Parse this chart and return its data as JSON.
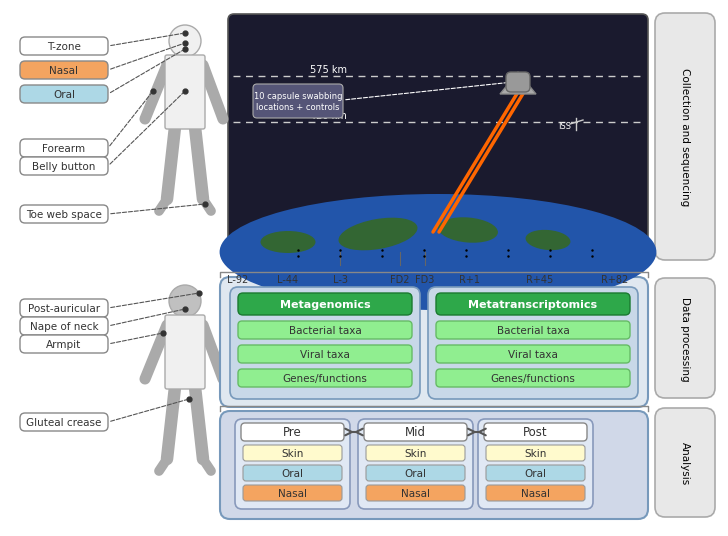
{
  "bg_color": "#ffffff",
  "space_bg": "#1a1a2e",
  "earth_blue": "#2255aa",
  "earth_green": "#336633",
  "dashed_line_color": "#aaaaaa",
  "orange_beam": "#ff6600",
  "labels_left_top": [
    "T-zone",
    "Nasal",
    "Oral",
    "Forearm",
    "Belly button",
    "Toe web space"
  ],
  "labels_left_top_colors": [
    "#ffffff",
    "#f4a460",
    "#add8e6",
    "#ffffff",
    "#ffffff",
    "#ffffff"
  ],
  "labels_left_bottom": [
    "Post-auricular",
    "Nape of neck",
    "Armpit",
    "Gluteal crease"
  ],
  "labels_left_bottom_colors": [
    "#ffffff",
    "#ffffff",
    "#ffffff",
    "#ffffff"
  ],
  "timeline_labels": [
    "L-92",
    "L-44",
    "L-3",
    "FD2",
    "FD3",
    "R+1",
    "R+45",
    "R+82"
  ],
  "alt_labels": [
    "575 km",
    "420 km"
  ],
  "space_note": "10 capsule swabbing\nlocations + controls",
  "iss_label": "ISS",
  "processing_left_title": "Metagenomics",
  "processing_left_items": [
    "Bacterial taxa",
    "Viral taxa",
    "Genes/functions"
  ],
  "processing_right_title": "Metatranscriptomics",
  "processing_right_items": [
    "Bacterial taxa",
    "Viral taxa",
    "Genes/functions"
  ],
  "analysis_groups": [
    "Pre",
    "Mid",
    "Post"
  ],
  "analysis_sublabels": [
    "Skin",
    "Oral",
    "Nasal"
  ],
  "skin_color": "#fffacd",
  "oral_color": "#add8e6",
  "nasal_color": "#f4a460",
  "green_dark": "#2ea84a",
  "green_light": "#90ee90",
  "side_labels": [
    "Collection and sequencing",
    "Data processing",
    "Analysis"
  ],
  "side_label_bg": "#e8e8e8",
  "outer_box_border": "#7799bb",
  "inner_box_bg_proc": "#d0dce8",
  "inner_box_bg_analysis": "#c8d4e8"
}
